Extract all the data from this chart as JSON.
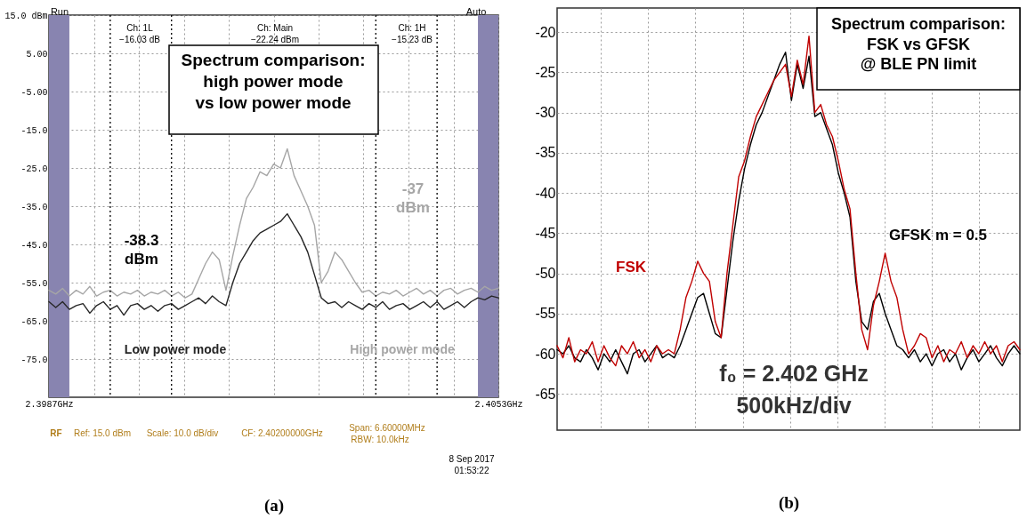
{
  "chart_data": [
    {
      "type": "line",
      "xlabel": "(a)",
      "legend": false,
      "grid": true,
      "x": [
        2.3987,
        2.3988,
        2.3989,
        2.399,
        2.3991,
        2.3992,
        2.3993,
        2.3994,
        2.3995,
        2.3996,
        2.3997,
        2.3998,
        2.3999,
        2.4,
        2.4001,
        2.4002,
        2.4003,
        2.4004,
        2.4005,
        2.4006,
        2.4007,
        2.4008,
        2.4009,
        2.401,
        2.4011,
        2.4012,
        2.4013,
        2.4014,
        2.4015,
        2.4016,
        2.4017,
        2.4018,
        2.4019,
        2.402,
        2.4021,
        2.4022,
        2.4023,
        2.4024,
        2.4025,
        2.4026,
        2.4027,
        2.4028,
        2.4029,
        2.403,
        2.4031,
        2.4032,
        2.4033,
        2.4034,
        2.4035,
        2.4036,
        2.4037,
        2.4038,
        2.4039,
        2.404,
        2.4041,
        2.4042,
        2.4043,
        2.4044,
        2.4045,
        2.4046,
        2.4047,
        2.4048,
        2.4049,
        2.405,
        2.4051,
        2.4052,
        2.4053
      ],
      "xlim": [
        2.3987,
        2.4053
      ],
      "xticks": [
        {
          "value": 2.3987,
          "label": "2.3987GHz"
        },
        {
          "value": 2.39936,
          "label": null
        },
        {
          "value": 2.40002,
          "label": null
        },
        {
          "value": 2.40068,
          "label": null
        },
        {
          "value": 2.40134,
          "label": null
        },
        {
          "value": 2.402,
          "label": null
        },
        {
          "value": 2.40266,
          "label": null
        },
        {
          "value": 2.40332,
          "label": null
        },
        {
          "value": 2.40398,
          "label": null
        },
        {
          "value": 2.40464,
          "label": null
        },
        {
          "value": 2.4053,
          "label": "2.4053GHz"
        }
      ],
      "bands": [
        {
          "axis": "x",
          "from": 2.3987,
          "to": 2.399,
          "color": "#8884b0"
        },
        {
          "axis": "x",
          "from": 2.405,
          "to": 2.4053,
          "color": "#8884b0"
        }
      ],
      "ylim": [
        -85,
        15
      ],
      "yticks": [
        {
          "value": 15,
          "label": "15.0 dBm"
        },
        {
          "value": 5,
          "label": "5.00"
        },
        {
          "value": -5,
          "label": "-5.00"
        },
        {
          "value": -15,
          "label": "-15.0"
        },
        {
          "value": -25,
          "label": "-25.0"
        },
        {
          "value": -35,
          "label": "-35.0"
        },
        {
          "value": -45,
          "label": "-45.0"
        },
        {
          "value": -55,
          "label": "-55.0"
        },
        {
          "value": -65,
          "label": "-65.0"
        },
        {
          "value": -75,
          "label": "-75.0"
        }
      ],
      "series": [
        {
          "name": "High power mode",
          "color": "#a6a6a6",
          "values": [
            -57,
            -58,
            -56.5,
            -58.5,
            -57,
            -58,
            -56,
            -58.5,
            -57.5,
            -57,
            -58.5,
            -57.5,
            -58,
            -57,
            -58.5,
            -57.5,
            -58,
            -57,
            -58.5,
            -57.5,
            -59,
            -58,
            -54,
            -50,
            -47,
            -49,
            -57,
            -48,
            -40,
            -33,
            -30,
            -26,
            -27,
            -24,
            -25,
            -20,
            -27,
            -31,
            -35,
            -40,
            -55,
            -52,
            -47,
            -49,
            -52,
            -55,
            -57.5,
            -57,
            -58.5,
            -57.5,
            -58,
            -57,
            -58.5,
            -57.5,
            -56.5,
            -58,
            -57,
            -58.5,
            -57,
            -56.5,
            -58,
            -57,
            -56.5,
            -57.5,
            -56,
            -57,
            -56.5
          ]
        },
        {
          "name": "Low power mode",
          "color": "#262626",
          "values": [
            -60,
            -61.5,
            -60,
            -62,
            -61,
            -60.5,
            -63,
            -61,
            -60,
            -62,
            -61,
            -63.5,
            -61,
            -60.5,
            -62,
            -61,
            -62.5,
            -61,
            -60.5,
            -62,
            -61,
            -60,
            -59,
            -60.5,
            -58.5,
            -60,
            -61,
            -55,
            -50,
            -47,
            -44,
            -42,
            -41,
            -40,
            -39,
            -37,
            -40,
            -43,
            -47,
            -53,
            -59,
            -60.5,
            -60,
            -61.5,
            -60,
            -61,
            -62,
            -60.5,
            -61.5,
            -60,
            -62,
            -61,
            -60.5,
            -62,
            -61,
            -60,
            -61.5,
            -60,
            -62,
            -61,
            -60,
            -61.5,
            -60,
            -59,
            -59.5,
            -58.5,
            -59
          ]
        }
      ],
      "ref_lines": [
        {
          "axis": "x",
          "value": 2.3996,
          "color": "#000000",
          "line_style": "dotted"
        },
        {
          "axis": "x",
          "value": 2.4005,
          "color": "#000000",
          "line_style": "dotted"
        },
        {
          "axis": "x",
          "value": 2.4035,
          "color": "#000000",
          "line_style": "dotted"
        },
        {
          "axis": "x",
          "value": 2.4044,
          "color": "#000000",
          "line_style": "dotted"
        }
      ],
      "annotations": [
        "Run",
        "Auto",
        "Ch: 1L\n−16.03 dB",
        "Ch: Main\n−22.24 dBm",
        "Ch: 1H\n−15.23 dB",
        "Spectrum comparison:\nhigh power mode\nvs low power mode",
        "-38.3\ndBm",
        "-37\ndBm",
        "RF",
        "Ref: 15.0 dBm",
        "Scale: 10.0 dB/div",
        "CF: 2.40200000GHz",
        "Span:  6.60000MHz",
        "RBW:  10.0kHz",
        "8 Sep 2017\n01:53:22"
      ]
    },
    {
      "type": "line",
      "xlabel": "(b)",
      "legend": false,
      "grid": true,
      "tick_labels": "y",
      "categories": [
        null,
        null,
        null,
        null,
        null,
        null,
        null,
        null,
        null,
        null,
        null,
        null,
        null,
        null,
        null,
        null,
        null,
        null,
        null,
        null,
        null,
        null,
        null,
        null,
        null,
        null,
        null,
        null,
        null,
        null,
        null,
        null,
        null,
        null,
        null,
        null,
        null,
        null,
        null,
        null,
        null,
        null,
        null,
        null,
        null,
        null,
        null,
        null,
        null,
        null,
        null,
        null,
        null,
        null,
        null,
        null,
        null,
        null,
        null,
        null,
        null,
        null,
        null,
        null,
        null,
        null,
        null,
        null,
        null,
        null,
        null,
        null,
        null,
        null,
        null,
        null,
        null,
        null,
        null,
        null
      ],
      "ylim": [
        -69.5,
        -17
      ],
      "yticks": [
        -65,
        -60,
        -55,
        -50,
        -45,
        -40,
        -35,
        -30,
        -25,
        -20
      ],
      "series": [
        {
          "name": "GFSK m = 0.5",
          "color": "#000000",
          "values": [
            -59.5,
            -60,
            -59,
            -60.5,
            -61,
            -59.5,
            -60.5,
            -62,
            -60,
            -61,
            -59.5,
            -61,
            -62.5,
            -60,
            -59.5,
            -61,
            -60,
            -59,
            -60.5,
            -60,
            -60.5,
            -59,
            -57,
            -55,
            -53,
            -52.5,
            -55,
            -57.5,
            -58,
            -52,
            -46,
            -41,
            -37,
            -34,
            -31.5,
            -30,
            -28,
            -26,
            -24,
            -22.5,
            -28.5,
            -24,
            -27,
            -23,
            -30.5,
            -30,
            -32,
            -34,
            -37.5,
            -40,
            -43,
            -51,
            -56,
            -57,
            -53.5,
            -52.5,
            -55,
            -57,
            -59,
            -59.5,
            -60.5,
            -59.5,
            -61,
            -60,
            -61.5,
            -60,
            -59.5,
            -61,
            -60,
            -62,
            -60.5,
            -59.5,
            -61,
            -60,
            -59,
            -60.5,
            -61.5,
            -60,
            -59,
            -60
          ]
        },
        {
          "name": "FSK",
          "color": "#c00000",
          "values": [
            -59,
            -60.5,
            -58,
            -61,
            -59.5,
            -60,
            -58.5,
            -61,
            -59,
            -60.5,
            -61.5,
            -59,
            -60,
            -58.5,
            -60.5,
            -59.5,
            -61,
            -59,
            -60,
            -59.5,
            -60,
            -57,
            -53,
            -51,
            -48.5,
            -50,
            -51,
            -56,
            -58,
            -50,
            -44,
            -38,
            -36,
            -33,
            -30.5,
            -29,
            -27.5,
            -26,
            -25,
            -24,
            -28,
            -23.5,
            -26.5,
            -20.5,
            -30,
            -29,
            -31.5,
            -33,
            -36,
            -39.5,
            -42,
            -50,
            -57,
            -59.5,
            -54,
            -51,
            -47.5,
            -51,
            -53,
            -57,
            -60,
            -59,
            -57.5,
            -58,
            -60.5,
            -59,
            -61,
            -59.5,
            -60,
            -58.5,
            -60.5,
            -59,
            -60,
            -58.5,
            -60,
            -59,
            -61,
            -59,
            -58.5,
            -59.5
          ]
        }
      ],
      "annotations": [
        "Spectrum comparison:\nFSK vs GFSK\n@ BLE PN limit",
        "f₀ = 2.402 GHz",
        "500kHz/div"
      ]
    }
  ]
}
